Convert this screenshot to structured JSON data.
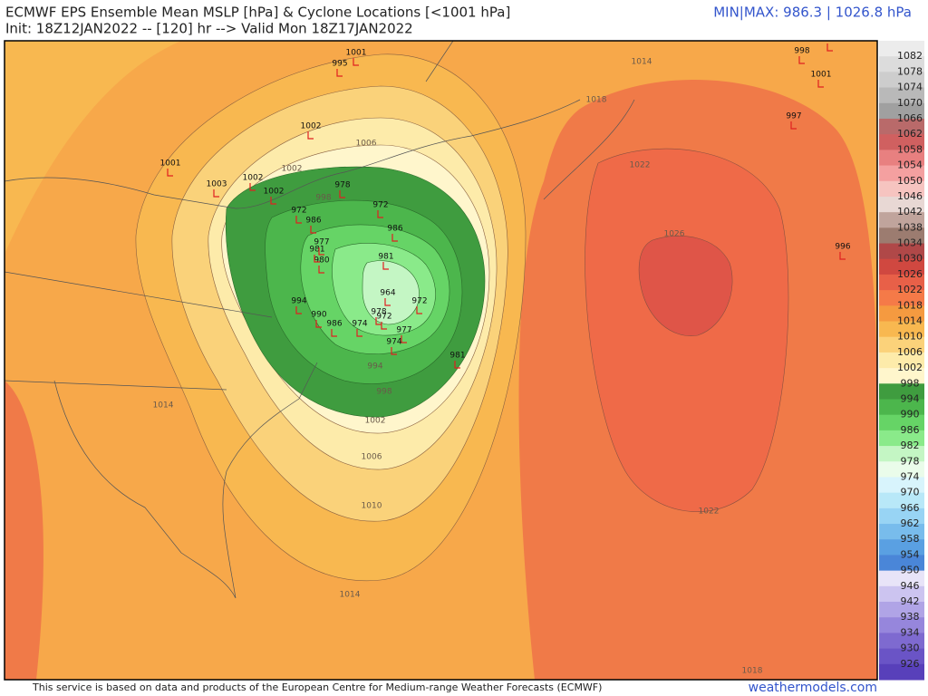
{
  "header": {
    "title": "ECMWF EPS Ensemble Mean MSLP [hPa] & Cyclone Locations [<1001 hPa]",
    "subtitle": "Init: 18Z12JAN2022 -- [120] hr --> Valid Mon 18Z17JAN2022",
    "minmax": "MIN|MAX: 986.3 | 1026.8 hPa"
  },
  "map": {
    "contour_labels": [
      1014,
      1018,
      1022,
      1026,
      1022,
      1018,
      1014,
      1010,
      1006,
      1002,
      998,
      994,
      1006,
      1002,
      998,
      1014
    ],
    "cyclones": [
      1001,
      995,
      998,
      991,
      1001,
      997,
      996,
      1002,
      1001,
      1003,
      1002,
      1002,
      978,
      972,
      986,
      972,
      986,
      981,
      964,
      972,
      977,
      974,
      981,
      994,
      990,
      986,
      974,
      978,
      972,
      980,
      981,
      977
    ]
  },
  "colorbar": {
    "labels": [
      1082,
      1078,
      1074,
      1070,
      1066,
      1062,
      1058,
      1054,
      1050,
      1046,
      1042,
      1038,
      1034,
      1030,
      1026,
      1022,
      1018,
      1014,
      1010,
      1006,
      1002,
      998,
      994,
      990,
      986,
      982,
      978,
      974,
      970,
      966,
      962,
      958,
      954,
      950,
      946,
      942,
      938,
      934,
      930,
      926
    ],
    "colors": [
      "#ececec",
      "#dcdcdc",
      "#cdcdcd",
      "#b9b9b9",
      "#a0a0a0",
      "#b96a6a",
      "#d06060",
      "#e88080",
      "#f4a0a0",
      "#f6c4c0",
      "#e8d8d4",
      "#c0a49c",
      "#9c7c70",
      "#b04848",
      "#d04840",
      "#e86048",
      "#f57a48",
      "#f59a40",
      "#f8b850",
      "#fbd27a",
      "#fdebaa",
      "#fff6cc",
      "#3f9c3f",
      "#4cb64c",
      "#66d466",
      "#8aea8a",
      "#c4f6c4",
      "#eafcea",
      "#d8f4fc",
      "#b8e8f8",
      "#98d4f4",
      "#78bcec",
      "#5aa0e2",
      "#4a86d8",
      "#e8e4f8",
      "#ccc4f0",
      "#b0a4e6",
      "#9686dc",
      "#7e6ad0",
      "#6a54c6",
      "#5840ba"
    ]
  },
  "footer": {
    "credit": "This service is based on data and products of the European Centre for Medium-range Weather Forecasts (ECMWF)",
    "site": "weathermodels.com"
  }
}
